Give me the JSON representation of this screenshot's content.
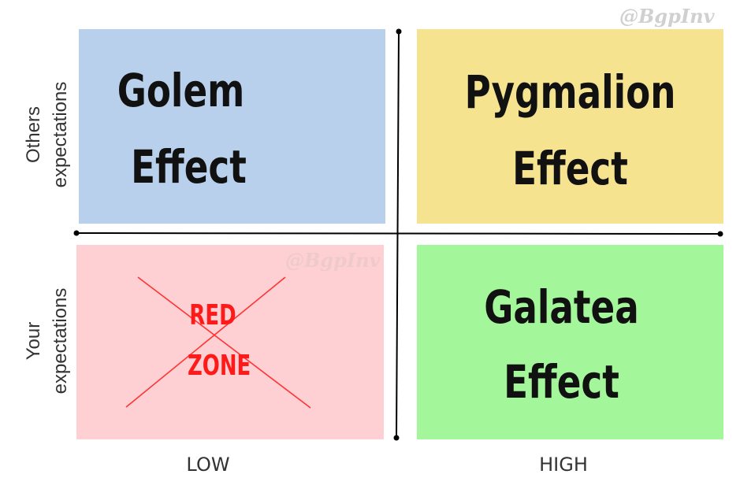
{
  "watermark": "@BgpInv",
  "quadrants": {
    "top_left": {
      "line1": "Golem",
      "line2": "Effect",
      "color": "#b8d0ec"
    },
    "top_right": {
      "line1": "Pygmalion",
      "line2": "Effect",
      "color": "#f5e38f"
    },
    "bottom_left": {
      "line1": "RED",
      "line2": "ZONE",
      "color": "#ffd0d3"
    },
    "bottom_right": {
      "line1": "Galatea",
      "line2": "Effect",
      "color": "#a3f79a"
    }
  },
  "y_axis": {
    "top_label_line1": "Others",
    "top_label_line2": "expectations",
    "bottom_label_line1": "Your",
    "bottom_label_line2": "expectations"
  },
  "x_axis": {
    "low_label": "LOW",
    "high_label": "HIGH"
  },
  "colors": {
    "axis": "#000000",
    "cross": "#ff3333",
    "red_text": "#ff1a1a"
  }
}
